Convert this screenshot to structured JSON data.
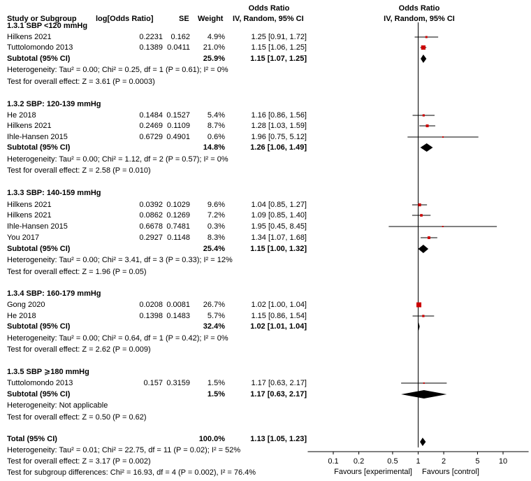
{
  "header": {
    "study": "Study or Subgroup",
    "log_or": "log[Odds Ratio]",
    "se": "SE",
    "weight": "Weight",
    "or_title": "Odds Ratio",
    "or_method": "IV, Random, 95% CI",
    "plot_title": "Odds Ratio",
    "plot_method": "IV, Random, 95% CI"
  },
  "groups": [
    {
      "title": "1.3.1 SBP <120 mmHg",
      "studies": [
        {
          "name": "Hilkens 2021",
          "log": "0.2231",
          "se": "0.162",
          "weight": "4.9%",
          "ci": "1.25 [0.91, 1.72]"
        },
        {
          "name": "Tuttolomondo 2013",
          "log": "0.1389",
          "se": "0.0411",
          "weight": "21.0%",
          "ci": "1.15 [1.06, 1.25]"
        }
      ],
      "subtotal": {
        "label": "Subtotal (95% CI)",
        "weight": "25.9%",
        "ci": "1.15 [1.07, 1.25]"
      },
      "heterogeneity": "Heterogeneity: Tau² = 0.00; Chi² = 0.25, df = 1 (P = 0.61); I² = 0%",
      "overall": "Test for overall effect: Z = 3.61 (P = 0.0003)"
    },
    {
      "title": "1.3.2 SBP: 120-139 mmHg",
      "studies": [
        {
          "name": "He 2018",
          "log": "0.1484",
          "se": "0.1527",
          "weight": "5.4%",
          "ci": "1.16 [0.86, 1.56]"
        },
        {
          "name": "Hilkens 2021",
          "log": "0.2469",
          "se": "0.1109",
          "weight": "8.7%",
          "ci": "1.28 [1.03, 1.59]"
        },
        {
          "name": "Ihle-Hansen 2015",
          "log": "0.6729",
          "se": "0.4901",
          "weight": "0.6%",
          "ci": "1.96 [0.75, 5.12]"
        }
      ],
      "subtotal": {
        "label": "Subtotal (95% CI)",
        "weight": "14.8%",
        "ci": "1.26 [1.06, 1.49]"
      },
      "heterogeneity": "Heterogeneity: Tau² = 0.00; Chi² = 1.12, df = 2 (P = 0.57); I² = 0%",
      "overall": "Test for overall effect: Z = 2.58 (P = 0.010)"
    },
    {
      "title": "1.3.3 SBP: 140-159 mmHg",
      "studies": [
        {
          "name": "Hilkens 2021",
          "log": "0.0392",
          "se": "0.1029",
          "weight": "9.6%",
          "ci": "1.04 [0.85, 1.27]"
        },
        {
          "name": "Hilkens 2021",
          "log": "0.0862",
          "se": "0.1269",
          "weight": "7.2%",
          "ci": "1.09 [0.85, 1.40]"
        },
        {
          "name": "Ihle-Hansen 2015",
          "log": "0.6678",
          "se": "0.7481",
          "weight": "0.3%",
          "ci": "1.95 [0.45, 8.45]"
        },
        {
          "name": "You 2017",
          "log": "0.2927",
          "se": "0.1148",
          "weight": "8.3%",
          "ci": "1.34 [1.07, 1.68]"
        }
      ],
      "subtotal": {
        "label": "Subtotal (95% CI)",
        "weight": "25.4%",
        "ci": "1.15 [1.00, 1.32]"
      },
      "heterogeneity": "Heterogeneity: Tau² = 0.00; Chi² = 3.41, df = 3 (P = 0.33); I² = 12%",
      "overall": "Test for overall effect: Z = 1.96 (P = 0.05)"
    },
    {
      "title": "1.3.4 SBP: 160-179 mmHg",
      "studies": [
        {
          "name": "Gong 2020",
          "log": "0.0208",
          "se": "0.0081",
          "weight": "26.7%",
          "ci": "1.02 [1.00, 1.04]"
        },
        {
          "name": "He 2018",
          "log": "0.1398",
          "se": "0.1483",
          "weight": "5.7%",
          "ci": "1.15 [0.86, 1.54]"
        }
      ],
      "subtotal": {
        "label": "Subtotal (95% CI)",
        "weight": "32.4%",
        "ci": "1.02 [1.01, 1.04]"
      },
      "heterogeneity": "Heterogeneity: Tau² = 0.00; Chi² = 0.64, df = 1 (P = 0.42); I² = 0%",
      "overall": "Test for overall effect: Z = 2.62 (P = 0.009)"
    },
    {
      "title": "1.3.5 SBP ⩾180 mmHg",
      "studies": [
        {
          "name": "Tuttolomondo 2013",
          "log": "0.157",
          "se": "0.3159",
          "weight": "1.5%",
          "ci": "1.17 [0.63, 2.17]"
        }
      ],
      "subtotal": {
        "label": "Subtotal (95% CI)",
        "weight": "1.5%",
        "ci": "1.17 [0.63, 2.17]"
      },
      "heterogeneity": "Heterogeneity: Not applicable",
      "overall": "Test for overall effect: Z = 0.50 (P = 0.62)"
    }
  ],
  "total": {
    "label": "Total (95% CI)",
    "weight": "100.0%",
    "ci": "1.13 [1.05, 1.23]",
    "heterogeneity": "Heterogeneity: Tau² = 0.01; Chi² = 22.75, df = 11 (P = 0.02); I² = 52%",
    "overall": "Test for overall effect: Z = 3.17 (P = 0.002)",
    "subgroup": "Test for subgroup differences: Chi² = 16.93, df = 4 (P = 0.002), I² = 76.4%"
  },
  "chart_data": {
    "type": "forest",
    "title": "Odds Ratio",
    "subtitle": "IV, Random, 95% CI",
    "xscale": "log",
    "xlim": [
      0.05,
      20
    ],
    "xticks": [
      0.1,
      0.2,
      0.5,
      1,
      2,
      5,
      10
    ],
    "xtick_labels": [
      "0.1",
      "0.2",
      "0.5",
      "1",
      "2",
      "5",
      "10"
    ],
    "xlabel_left": "Favours [experimental]",
    "xlabel_right": "Favours [control]",
    "null_value": 1,
    "studies": [
      {
        "group": 0,
        "name": "Hilkens 2021",
        "or": 1.25,
        "lo": 0.91,
        "hi": 1.72,
        "weight": 4.9
      },
      {
        "group": 0,
        "name": "Tuttolomondo 2013",
        "or": 1.15,
        "lo": 1.06,
        "hi": 1.25,
        "weight": 21.0
      },
      {
        "group": 1,
        "name": "He 2018",
        "or": 1.16,
        "lo": 0.86,
        "hi": 1.56,
        "weight": 5.4
      },
      {
        "group": 1,
        "name": "Hilkens 2021",
        "or": 1.28,
        "lo": 1.03,
        "hi": 1.59,
        "weight": 8.7
      },
      {
        "group": 1,
        "name": "Ihle-Hansen 2015",
        "or": 1.96,
        "lo": 0.75,
        "hi": 5.12,
        "weight": 0.6
      },
      {
        "group": 2,
        "name": "Hilkens 2021",
        "or": 1.04,
        "lo": 0.85,
        "hi": 1.27,
        "weight": 9.6
      },
      {
        "group": 2,
        "name": "Hilkens 2021",
        "or": 1.09,
        "lo": 0.85,
        "hi": 1.4,
        "weight": 7.2
      },
      {
        "group": 2,
        "name": "Ihle-Hansen 2015",
        "or": 1.95,
        "lo": 0.45,
        "hi": 8.45,
        "weight": 0.3
      },
      {
        "group": 2,
        "name": "You 2017",
        "or": 1.34,
        "lo": 1.07,
        "hi": 1.68,
        "weight": 8.3
      },
      {
        "group": 3,
        "name": "Gong 2020",
        "or": 1.02,
        "lo": 1.0,
        "hi": 1.04,
        "weight": 26.7
      },
      {
        "group": 3,
        "name": "He 2018",
        "or": 1.15,
        "lo": 0.86,
        "hi": 1.54,
        "weight": 5.7
      },
      {
        "group": 4,
        "name": "Tuttolomondo 2013",
        "or": 1.17,
        "lo": 0.63,
        "hi": 2.17,
        "weight": 1.5
      }
    ],
    "subtotals": [
      {
        "group": 0,
        "or": 1.15,
        "lo": 1.07,
        "hi": 1.25
      },
      {
        "group": 1,
        "or": 1.26,
        "lo": 1.06,
        "hi": 1.49
      },
      {
        "group": 2,
        "or": 1.15,
        "lo": 1.0,
        "hi": 1.32
      },
      {
        "group": 3,
        "or": 1.02,
        "lo": 1.01,
        "hi": 1.04
      },
      {
        "group": 4,
        "or": 1.17,
        "lo": 0.63,
        "hi": 2.17
      }
    ],
    "total": {
      "or": 1.13,
      "lo": 1.05,
      "hi": 1.23
    },
    "colors": {
      "square": "#cc0000",
      "line": "#000000",
      "diamond": "#000000"
    }
  }
}
